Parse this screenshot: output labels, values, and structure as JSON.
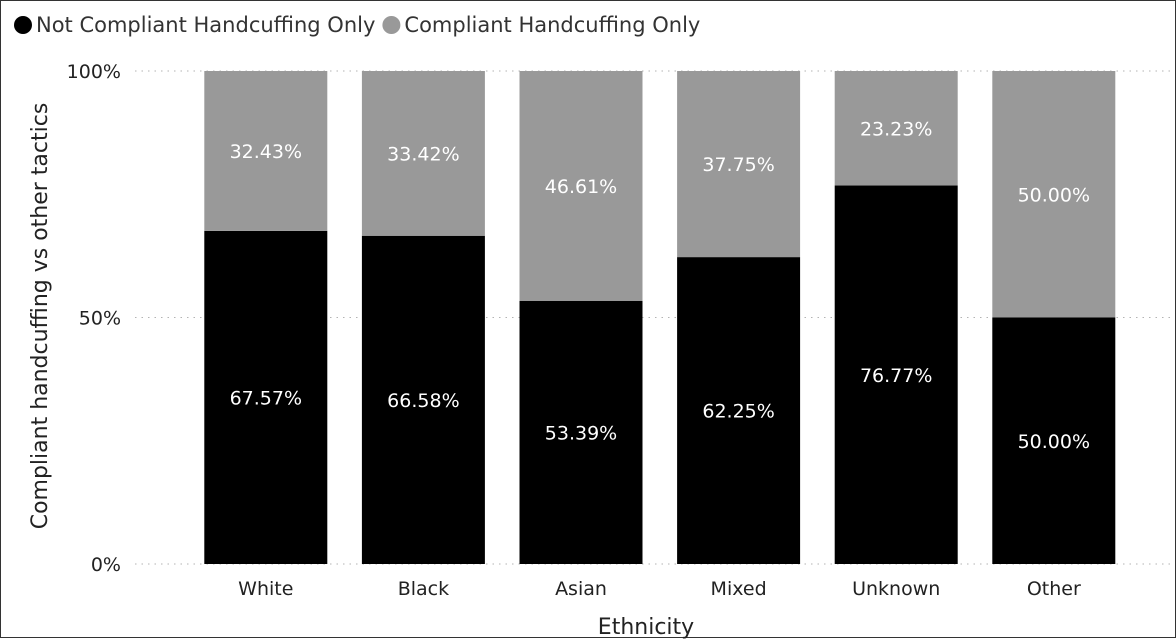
{
  "chart_data": {
    "type": "bar",
    "stacked": true,
    "percent_stacked": true,
    "categories": [
      "White",
      "Black",
      "Asian",
      "Mixed",
      "Unknown",
      "Other"
    ],
    "series": [
      {
        "name": "Not Compliant Handcuffing Only",
        "color": "#000000",
        "values": [
          67.57,
          66.58,
          53.39,
          62.25,
          76.77,
          50.0
        ],
        "labels": [
          "67.57%",
          "66.58%",
          "53.39%",
          "62.25%",
          "76.77%",
          "50.00%"
        ]
      },
      {
        "name": "Compliant Handcuffing Only",
        "color": "#999999",
        "values": [
          32.43,
          33.42,
          46.61,
          37.75,
          23.23,
          50.0
        ],
        "labels": [
          "32.43%",
          "33.42%",
          "46.61%",
          "37.75%",
          "23.23%",
          "50.00%"
        ]
      }
    ],
    "xlabel": "Ethnicity",
    "ylabel": "Compliant handcuffing vs other tactics",
    "ylim": [
      0,
      100
    ],
    "yticks": [
      {
        "value": 0,
        "label": "0%"
      },
      {
        "value": 50,
        "label": "50%"
      },
      {
        "value": 100,
        "label": "100%"
      }
    ],
    "grid": "dotted horizontal",
    "legend_position": "top-left",
    "data_label_color": "#ffffff"
  }
}
